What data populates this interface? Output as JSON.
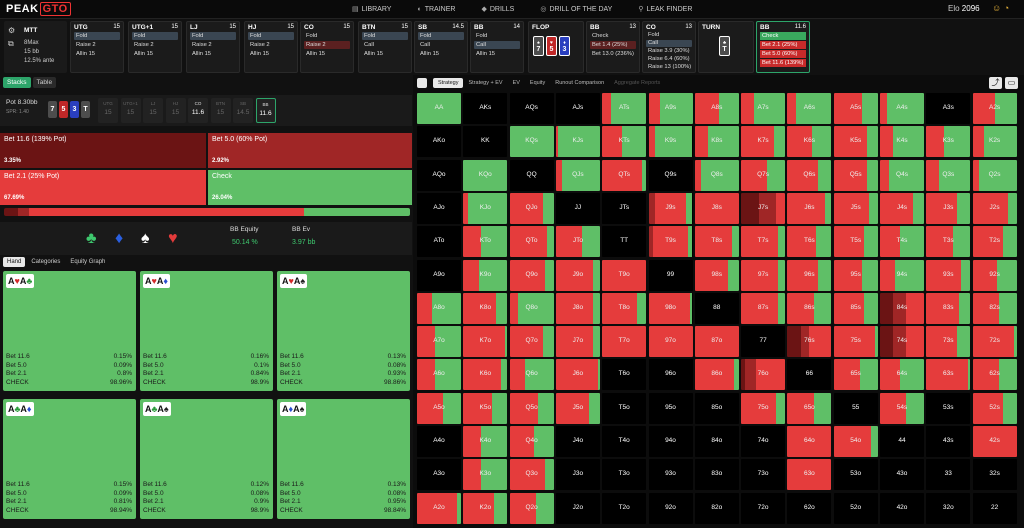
{
  "app": {
    "logo_text": "PEAK",
    "logo_box": "GTO"
  },
  "nav": [
    {
      "label": "LIBRARY",
      "icon": "book-icon"
    },
    {
      "label": "TRAINER",
      "icon": "controller-icon"
    },
    {
      "label": "DRILLS",
      "icon": "diamond-icon"
    },
    {
      "label": "DRILL OF THE DAY",
      "icon": "target-icon"
    },
    {
      "label": "LEAK FINDER",
      "icon": "pin-icon"
    }
  ],
  "elo": {
    "label": "Elo",
    "value": "2096"
  },
  "game": {
    "type": "MTT",
    "max": "8Max",
    "bb": "15 bb",
    "ante": "12.5% ante"
  },
  "positions": [
    {
      "name": "UTG",
      "stack": "15",
      "actions": [
        "Fold",
        "Raise 2",
        "Allin 15"
      ],
      "sel": 0
    },
    {
      "name": "UTG+1",
      "stack": "15",
      "actions": [
        "Fold",
        "Raise 2",
        "Allin 15"
      ],
      "sel": 0
    },
    {
      "name": "LJ",
      "stack": "15",
      "actions": [
        "Fold",
        "Raise 2",
        "Allin 15"
      ],
      "sel": 0
    },
    {
      "name": "HJ",
      "stack": "15",
      "actions": [
        "Fold",
        "Raise 2",
        "Allin 15"
      ],
      "sel": 0
    },
    {
      "name": "CO",
      "stack": "15",
      "actions": [
        "Fold",
        "Raise 2",
        "Allin 15"
      ],
      "sel": 1
    },
    {
      "name": "BTN",
      "stack": "15",
      "actions": [
        "Fold",
        "Call",
        "Allin 15"
      ],
      "sel": 0
    },
    {
      "name": "SB",
      "stack": "14.5",
      "actions": [
        "Fold",
        "Call",
        "Allin 15"
      ],
      "sel": 0
    },
    {
      "name": "BB",
      "stack": "14",
      "actions": [
        "Fold",
        "Call",
        "Allin 15"
      ],
      "sel": 1
    }
  ],
  "flop": {
    "label": "FLOP",
    "cards": [
      {
        "rank": "7",
        "suit": "♠"
      },
      {
        "rank": "5",
        "suit": "♥"
      },
      {
        "rank": "3",
        "suit": "♦"
      }
    ]
  },
  "bb_flop": {
    "name": "BB",
    "stack": "13",
    "actions": [
      "Check",
      "Bet 1.4 (25%)",
      "Bet 13.0 (236%)"
    ],
    "sel": 1
  },
  "co_flop": {
    "name": "CO",
    "stack": "13",
    "actions": [
      "Fold",
      "Call",
      "Raise 3.9 (30%)",
      "Raise 6.4 (60%)",
      "Raise 13 (100%)"
    ],
    "sel": 1
  },
  "turn": {
    "label": "TURN",
    "card": {
      "rank": "T",
      "suit": "♣"
    }
  },
  "bb_turn": {
    "name": "BB",
    "stack": "11.6",
    "actions": [
      "Check",
      "Bet 2.1 (25%)",
      "Bet 5.0 (60%)",
      "Bet 11.6 (139%)"
    ]
  },
  "left_tabs": [
    "Stacks",
    "Table"
  ],
  "stack_row": {
    "pot_label": "Pot",
    "pot_value": "8.30bb",
    "spr": "SPR: 1.40",
    "board": [
      {
        "rank": "7",
        "color": "#4d4d4d"
      },
      {
        "rank": "5",
        "color": "#c02828"
      },
      {
        "rank": "3",
        "color": "#2a3fbf"
      },
      {
        "rank": "T",
        "color": "#4d4d4d"
      }
    ],
    "seats": [
      {
        "n": "UTG",
        "v": "15"
      },
      {
        "n": "UTG+1",
        "v": "15"
      },
      {
        "n": "LJ",
        "v": "15"
      },
      {
        "n": "HJ",
        "v": "15"
      },
      {
        "n": "CO",
        "v": "11.6"
      },
      {
        "n": "BTN",
        "v": "15"
      },
      {
        "n": "SB",
        "v": "14.5"
      },
      {
        "n": "BB",
        "v": "11.6"
      }
    ]
  },
  "actions": [
    {
      "label": "Bet 11.6 (139% Pot)",
      "pct": "3.35%",
      "color": "#6b1414"
    },
    {
      "label": "Bet 5.0 (60% Pot)",
      "pct": "2.92%",
      "color": "#a02626"
    },
    {
      "label": "Bet 2.1 (25% Pot)",
      "pct": "67.69%",
      "color": "#e53c3c"
    },
    {
      "label": "Check",
      "pct": "26.04%",
      "color": "#5fbf67"
    }
  ],
  "freq_bar": [
    3.35,
    2.92,
    67.69,
    26.04
  ],
  "equity": {
    "suits": [
      "♣",
      "♦",
      "♠",
      "♥"
    ],
    "suit_colors": [
      "#3ec86e",
      "#2a5fe0",
      "#ffffff",
      "#e33b3b"
    ],
    "eq_label": "BB Equity",
    "eq_value": "50.14 %",
    "ev_label": "BB Ev",
    "ev_value": "3.97 bb"
  },
  "sub_tabs": [
    "Hand",
    "Categories",
    "Equity Graph"
  ],
  "combos": [
    {
      "c1": {
        "r": "A",
        "s": "♥",
        "col": "#d42a2a"
      },
      "c2": {
        "r": "A",
        "s": "♣",
        "col": "#2a9a3a"
      },
      "rows": [
        [
          "Bet 11.6",
          "0.15%"
        ],
        [
          "Bet 5.0",
          "0.09%"
        ],
        [
          "Bet 2.1",
          "0.8%"
        ],
        [
          "CHECK",
          "98.96%"
        ]
      ]
    },
    {
      "c1": {
        "r": "A",
        "s": "♥",
        "col": "#d42a2a"
      },
      "c2": {
        "r": "A",
        "s": "♦",
        "col": "#2a4fd0"
      },
      "rows": [
        [
          "Bet 11.6",
          "0.16%"
        ],
        [
          "Bet 5.0",
          "0.1%"
        ],
        [
          "Bet 2.1",
          "0.84%"
        ],
        [
          "CHECK",
          "98.9%"
        ]
      ]
    },
    {
      "c1": {
        "r": "A",
        "s": "♥",
        "col": "#d42a2a"
      },
      "c2": {
        "r": "A",
        "s": "♠",
        "col": "#222"
      },
      "rows": [
        [
          "Bet 11.6",
          "0.13%"
        ],
        [
          "Bet 5.0",
          "0.08%"
        ],
        [
          "Bet 2.1",
          "0.93%"
        ],
        [
          "CHECK",
          "98.86%"
        ]
      ]
    },
    {
      "c1": {
        "r": "A",
        "s": "♣",
        "col": "#2a9a3a"
      },
      "c2": {
        "r": "A",
        "s": "♦",
        "col": "#2a4fd0"
      },
      "rows": [
        [
          "Bet 11.6",
          "0.15%"
        ],
        [
          "Bet 5.0",
          "0.09%"
        ],
        [
          "Bet 2.1",
          "0.81%"
        ],
        [
          "CHECK",
          "98.94%"
        ]
      ]
    },
    {
      "c1": {
        "r": "A",
        "s": "♣",
        "col": "#2a9a3a"
      },
      "c2": {
        "r": "A",
        "s": "♠",
        "col": "#222"
      },
      "rows": [
        [
          "Bet 11.6",
          "0.12%"
        ],
        [
          "Bet 5.0",
          "0.08%"
        ],
        [
          "Bet 2.1",
          "0.9%"
        ],
        [
          "CHECK",
          "98.9%"
        ]
      ]
    },
    {
      "c1": {
        "r": "A",
        "s": "♦",
        "col": "#2a4fd0"
      },
      "c2": {
        "r": "A",
        "s": "♠",
        "col": "#222"
      },
      "rows": [
        [
          "Bet 11.6",
          "0.13%"
        ],
        [
          "Bet 5.0",
          "0.08%"
        ],
        [
          "Bet 2.1",
          "0.95%"
        ],
        [
          "CHECK",
          "98.84%"
        ]
      ]
    }
  ],
  "right_tabs": [
    {
      "label": "Strategy",
      "active": true
    },
    {
      "label": "Strategy + EV"
    },
    {
      "label": "EV"
    },
    {
      "label": "Equity"
    },
    {
      "label": "Runout Comparison"
    },
    {
      "label": "Aggregate Reports",
      "dim": true
    }
  ],
  "colors": {
    "check": "#5fbf67",
    "bet_small": "#e53c3c",
    "bet_mid": "#a02626",
    "bet_big": "#6b1414"
  },
  "grid": {
    "ranks": [
      "A",
      "K",
      "Q",
      "J",
      "T",
      "9",
      "8",
      "7",
      "6",
      "5",
      "4",
      "3",
      "2"
    ],
    "cells": {
      "0_0": [
        0,
        0,
        0,
        100
      ],
      "0_1": null,
      "0_2": null,
      "0_3": null,
      "0_4": [
        0,
        0,
        20,
        80
      ],
      "0_5": [
        0,
        0,
        25,
        75
      ],
      "0_6": [
        0,
        0,
        55,
        45
      ],
      "0_7": [
        0,
        0,
        30,
        70
      ],
      "0_8": [
        0,
        0,
        20,
        80
      ],
      "0_9": [
        0,
        0,
        65,
        35
      ],
      "0_10": [
        0,
        0,
        15,
        85
      ],
      "0_11": null,
      "0_12": [
        0,
        0,
        50,
        50
      ],
      "1_0": null,
      "1_1": null,
      "1_2": [
        0,
        0,
        0,
        100
      ],
      "1_3": [
        0,
        0,
        5,
        95
      ],
      "1_4": [
        0,
        0,
        45,
        55
      ],
      "1_5": [
        0,
        0,
        15,
        85
      ],
      "1_6": [
        0,
        0,
        30,
        70
      ],
      "1_7": [
        0,
        0,
        75,
        25
      ],
      "1_8": [
        0,
        0,
        55,
        45
      ],
      "1_9": [
        0,
        0,
        75,
        25
      ],
      "1_10": [
        0,
        0,
        30,
        70
      ],
      "1_11": [
        0,
        0,
        40,
        60
      ],
      "1_12": [
        0,
        0,
        25,
        75
      ],
      "2_0": null,
      "2_1": [
        0,
        0,
        0,
        100
      ],
      "2_2": null,
      "2_3": [
        0,
        0,
        15,
        85
      ],
      "2_4": [
        0,
        0,
        90,
        10
      ],
      "2_5": null,
      "2_6": [
        0,
        0,
        15,
        85
      ],
      "2_7": [
        0,
        0,
        60,
        40
      ],
      "2_8": [
        0,
        0,
        70,
        30
      ],
      "2_9": [
        0,
        0,
        75,
        25
      ],
      "2_10": [
        0,
        0,
        20,
        80
      ],
      "2_11": [
        0,
        0,
        30,
        70
      ],
      "2_12": [
        0,
        0,
        15,
        85
      ],
      "3_0": null,
      "3_1": [
        0,
        0,
        10,
        90
      ],
      "3_2": [
        0,
        0,
        75,
        25
      ],
      "3_3": null,
      "3_4": null,
      "3_5": [
        0,
        15,
        70,
        15
      ],
      "3_6": [
        0,
        0,
        100,
        0
      ],
      "3_7": [
        40,
        40,
        20,
        0
      ],
      "3_8": [
        0,
        0,
        85,
        15
      ],
      "3_9": [
        0,
        0,
        80,
        20
      ],
      "3_10": [
        0,
        0,
        75,
        25
      ],
      "3_11": [
        0,
        0,
        70,
        30
      ],
      "3_12": [
        0,
        0,
        80,
        20
      ],
      "4_0": null,
      "4_1": [
        0,
        0,
        40,
        60
      ],
      "4_2": [
        0,
        0,
        85,
        15
      ],
      "4_3": [
        0,
        0,
        60,
        40
      ],
      "4_4": null,
      "4_5": [
        0,
        10,
        80,
        10
      ],
      "4_6": [
        0,
        0,
        85,
        15
      ],
      "4_7": [
        0,
        0,
        85,
        15
      ],
      "4_8": [
        0,
        0,
        65,
        35
      ],
      "4_9": [
        0,
        0,
        70,
        30
      ],
      "4_10": [
        0,
        0,
        45,
        55
      ],
      "4_11": [
        0,
        0,
        60,
        40
      ],
      "4_12": [
        0,
        0,
        70,
        30
      ],
      "5_0": null,
      "5_1": [
        0,
        0,
        35,
        65
      ],
      "5_2": [
        0,
        0,
        80,
        20
      ],
      "5_3": [
        0,
        0,
        85,
        15
      ],
      "5_4": [
        0,
        0,
        100,
        0
      ],
      "5_5": null,
      "5_6": [
        0,
        0,
        75,
        25
      ],
      "5_7": [
        0,
        0,
        85,
        15
      ],
      "5_8": [
        0,
        0,
        70,
        30
      ],
      "5_9": [
        0,
        0,
        65,
        35
      ],
      "5_10": [
        0,
        0,
        35,
        65
      ],
      "5_11": [
        0,
        0,
        80,
        20
      ],
      "5_12": [
        0,
        0,
        55,
        45
      ],
      "6_0": [
        0,
        0,
        35,
        65
      ],
      "6_1": [
        0,
        0,
        75,
        25
      ],
      "6_2": [
        0,
        0,
        20,
        80
      ],
      "6_3": [
        0,
        0,
        85,
        15
      ],
      "6_4": [
        0,
        0,
        80,
        20
      ],
      "6_5": [
        0,
        0,
        95,
        5
      ],
      "6_6": null,
      "6_7": [
        0,
        0,
        85,
        15
      ],
      "6_8": [
        0,
        0,
        60,
        40
      ],
      "6_9": [
        0,
        0,
        70,
        30
      ],
      "6_10": [
        30,
        30,
        40,
        0
      ],
      "6_11": [
        0,
        0,
        75,
        25
      ],
      "6_12": [
        0,
        0,
        60,
        40
      ],
      "7_0": [
        0,
        0,
        40,
        60
      ],
      "7_1": [
        0,
        0,
        95,
        5
      ],
      "7_2": [
        0,
        0,
        75,
        25
      ],
      "7_3": [
        0,
        0,
        85,
        15
      ],
      "7_4": [
        0,
        0,
        100,
        0
      ],
      "7_5": [
        0,
        0,
        100,
        0
      ],
      "7_6": [
        0,
        0,
        100,
        0
      ],
      "7_7": null,
      "7_8": [
        30,
        20,
        50,
        0
      ],
      "7_9": [
        0,
        0,
        95,
        5
      ],
      "7_10": [
        30,
        30,
        40,
        0
      ],
      "7_11": [
        0,
        0,
        70,
        30
      ],
      "7_12": [
        0,
        0,
        95,
        5
      ],
      "8_0": [
        0,
        0,
        40,
        60
      ],
      "8_1": [
        0,
        0,
        85,
        15
      ],
      "8_2": [
        0,
        0,
        35,
        65
      ],
      "8_3": [
        0,
        0,
        95,
        5
      ],
      "8_4": null,
      "8_5": null,
      "8_6": [
        0,
        0,
        90,
        10
      ],
      "8_7": [
        10,
        25,
        65,
        0
      ],
      "8_8": null,
      "8_9": [
        0,
        0,
        60,
        40
      ],
      "8_10": [
        0,
        0,
        45,
        55
      ],
      "8_11": [
        0,
        0,
        95,
        5
      ],
      "8_12": [
        0,
        0,
        60,
        40
      ],
      "9_0": [
        0,
        0,
        60,
        40
      ],
      "9_1": [
        0,
        0,
        65,
        35
      ],
      "9_2": [
        0,
        0,
        65,
        35
      ],
      "9_3": [
        0,
        0,
        75,
        25
      ],
      "9_4": null,
      "9_5": null,
      "9_6": null,
      "9_7": [
        0,
        0,
        80,
        20
      ],
      "9_8": [
        0,
        0,
        60,
        40
      ],
      "9_9": null,
      "9_10": [
        0,
        0,
        60,
        40
      ],
      "9_11": null,
      "9_12": [
        0,
        0,
        70,
        30
      ],
      "10_0": null,
      "10_1": [
        0,
        0,
        40,
        60
      ],
      "10_2": [
        0,
        0,
        55,
        45
      ],
      "10_3": null,
      "10_4": null,
      "10_5": null,
      "10_6": null,
      "10_7": null,
      "10_8": [
        0,
        0,
        100,
        0
      ],
      "10_9": [
        0,
        0,
        85,
        15
      ],
      "10_10": null,
      "10_11": null,
      "10_12": [
        0,
        0,
        100,
        0
      ],
      "11_0": null,
      "11_1": [
        0,
        0,
        40,
        60
      ],
      "11_2": [
        0,
        0,
        80,
        20
      ],
      "11_3": null,
      "11_4": null,
      "11_5": null,
      "11_6": null,
      "11_7": null,
      "11_8": [
        0,
        0,
        100,
        0
      ],
      "11_9": null,
      "11_10": null,
      "11_11": null,
      "11_12": null,
      "12_0": [
        0,
        0,
        90,
        10
      ],
      "12_1": [
        0,
        0,
        70,
        30
      ],
      "12_2": [
        0,
        0,
        60,
        40
      ],
      "12_3": null,
      "12_4": null,
      "12_5": null,
      "12_6": null,
      "12_7": null,
      "12_8": null,
      "12_9": null,
      "12_10": null,
      "12_11": null,
      "12_12": null
    }
  }
}
